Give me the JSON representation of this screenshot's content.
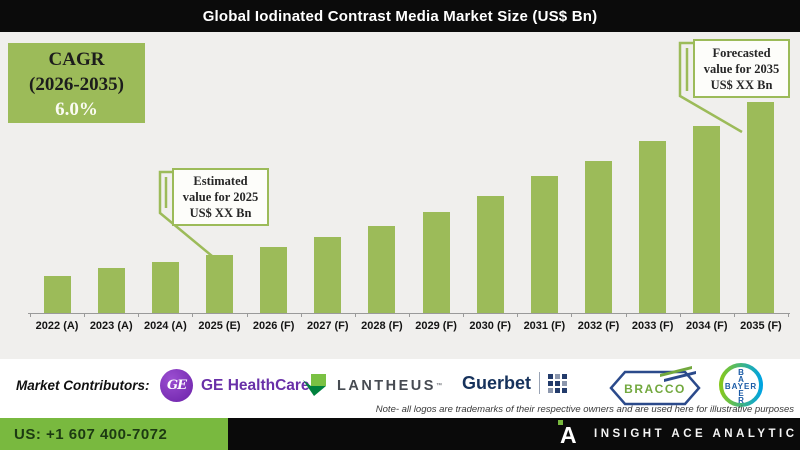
{
  "title": "Global Iodinated Contrast Media Market Size (US$ Bn)",
  "cagr_box": {
    "line1": "CAGR",
    "line2": "(2026-2035)",
    "line3": "6.0%"
  },
  "callouts": {
    "estimated": {
      "lines": [
        "Estimated",
        "value for 2025",
        "US$ XX Bn"
      ]
    },
    "forecasted": {
      "lines": [
        "Forecasted",
        "value for 2035",
        "US$ XX Bn"
      ]
    }
  },
  "chart_data": {
    "type": "bar",
    "title": "Global Iodinated Contrast Media Market Size (US$ Bn)",
    "categories": [
      "2022 (A)",
      "2023 (A)",
      "2024 (A)",
      "2025 (E)",
      "2026 (F)",
      "2027 (F)",
      "2028 (F)",
      "2029 (F)",
      "2030 (F)",
      "2031 (F)",
      "2032 (F)",
      "2033 (F)",
      "2034 (F)",
      "2035 (F)"
    ],
    "values": [
      37,
      45,
      51,
      58,
      66,
      76,
      87,
      101,
      117,
      137,
      152,
      172,
      187,
      211
    ],
    "values_unit": "relative bar height (actual figures masked in source as 'US$ XX Bn')",
    "cagr_2026_2035_percent": 6.0,
    "xlabel": "",
    "ylabel": "",
    "ylim": [
      0,
      281
    ],
    "grid": false,
    "legend": "none",
    "bar_color": "#9CBB59"
  },
  "footer": {
    "label": "Market Contributors:",
    "ge": {
      "monogram": "GE",
      "name": "GE HealthCare"
    },
    "lantheus": {
      "name": "LANTHEUS",
      "tm": "™"
    },
    "guerbet": {
      "name": "Guerbet"
    },
    "bracco": {
      "name": "BRACCO"
    },
    "bayer": {
      "name": "BAYER",
      "vertical_top": [
        "B",
        "A"
      ],
      "vertical_bottom": [
        "E",
        "R"
      ]
    },
    "note": "Note- all logos are trademarks of their respective owners and are used here for illustrative purposes"
  },
  "bottom_bar": {
    "phone": "US: +1 607 400-7072",
    "brand": "INSIGHT ACE ANALYTIC"
  },
  "colors": {
    "bar_green": "#9CBB59",
    "bottom_green": "#79B93F",
    "title_black": "#0B0B0B",
    "chart_bg": "#F0EFED",
    "ge_purple": "#6930A8",
    "lantheus_light_green": "#7AC143",
    "lantheus_dark_green": "#00813D",
    "lantheus_gray": "#474B52",
    "guerbet_navy": "#16325C",
    "bracco_navy": "#2B4A8B",
    "bracco_green": "#72A83E",
    "bayer_green": "#85C81E",
    "bayer_blue": "#00A3E0",
    "bayer_letter_blue": "#1B5BA6"
  }
}
